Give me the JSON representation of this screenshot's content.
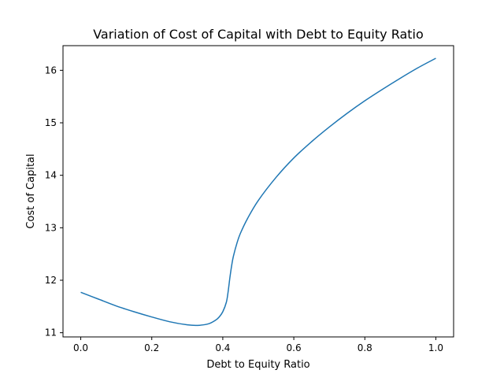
{
  "chart_data": {
    "type": "line",
    "title": "Variation of Cost of Capital with Debt to Equity Ratio",
    "xlabel": "Debt to Equity Ratio",
    "ylabel": "Cost of Capital",
    "xlim": [
      -0.05,
      1.05
    ],
    "ylim": [
      10.92,
      16.47
    ],
    "x_ticks": [
      0.0,
      0.2,
      0.4,
      0.6,
      0.8,
      1.0
    ],
    "x_tick_labels": [
      "0.0",
      "0.2",
      "0.4",
      "0.6",
      "0.8",
      "1.0"
    ],
    "y_ticks": [
      11,
      12,
      13,
      14,
      15,
      16
    ],
    "y_tick_labels": [
      "11",
      "12",
      "13",
      "14",
      "15",
      "16"
    ],
    "grid": false,
    "legend": "none",
    "line_color": "#1f77b4",
    "series": [
      {
        "x": [
          0.0,
          0.05,
          0.1,
          0.15,
          0.2,
          0.25,
          0.3,
          0.33,
          0.36,
          0.38,
          0.39,
          0.4,
          0.41,
          0.415,
          0.42,
          0.425,
          0.43,
          0.44,
          0.45,
          0.47,
          0.5,
          0.55,
          0.6,
          0.65,
          0.7,
          0.75,
          0.8,
          0.85,
          0.9,
          0.95,
          1.0
        ],
        "y": [
          11.77,
          11.64,
          11.51,
          11.4,
          11.3,
          11.21,
          11.15,
          11.14,
          11.17,
          11.24,
          11.3,
          11.4,
          11.58,
          11.78,
          12.05,
          12.28,
          12.46,
          12.71,
          12.9,
          13.18,
          13.52,
          13.96,
          14.33,
          14.64,
          14.92,
          15.18,
          15.42,
          15.64,
          15.85,
          16.05,
          16.23
        ]
      }
    ]
  }
}
